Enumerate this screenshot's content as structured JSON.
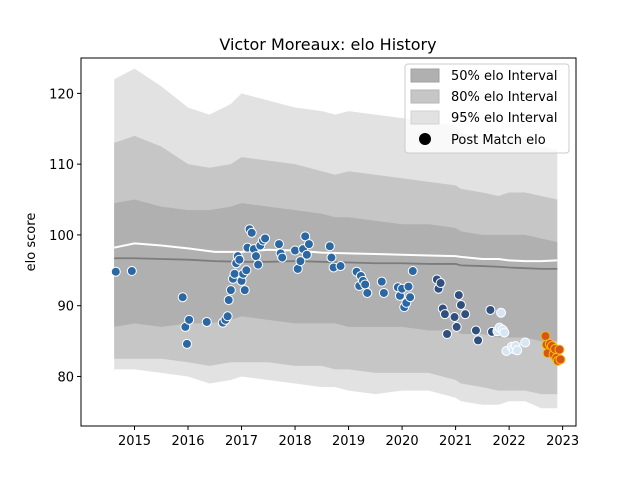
{
  "chart_data": {
    "type": "scatter",
    "title": "Victor Moreaux: elo History",
    "xlabel": "",
    "ylabel": "elo score",
    "xlim": [
      2014.0,
      2023.25
    ],
    "ylim": [
      73,
      125
    ],
    "x_ticks": [
      2015,
      2016,
      2017,
      2018,
      2019,
      2020,
      2021,
      2022,
      2023
    ],
    "y_ticks": [
      80,
      90,
      100,
      110,
      120
    ],
    "grid": false,
    "legend_position": "top-right",
    "legend": [
      {
        "label": "50% elo Interval",
        "color": "#b0b0b0",
        "kind": "patch"
      },
      {
        "label": "80% elo Interval",
        "color": "#c6c6c6",
        "kind": "patch"
      },
      {
        "label": "95% elo Interval",
        "color": "#e2e2e2",
        "kind": "patch"
      },
      {
        "label": "Post Match elo",
        "color": "#000000",
        "kind": "marker"
      }
    ],
    "colors": {
      "band95": "#e2e2e2",
      "band80": "#c6c6c6",
      "band50": "#b0b0b0",
      "median_line": "#7c7c7c",
      "mean_line": "#ffffff",
      "point_early": "#2a67a3",
      "point_mid": "#2f4f7f",
      "point_late": "#d7e6f5",
      "point_recent": "#d9541a",
      "point_edge": "#ffffff",
      "recent_edge": "#f3c300"
    },
    "bands": {
      "x": [
        2014.62,
        2015.0,
        2015.5,
        2016.0,
        2016.4,
        2016.8,
        2017.0,
        2017.5,
        2018.0,
        2018.5,
        2018.75,
        2019.0,
        2019.5,
        2020.0,
        2020.5,
        2021.0,
        2021.1,
        2021.5,
        2021.8,
        2022.0,
        2022.3,
        2022.6,
        2022.9
      ],
      "p95_upper": [
        122.0,
        123.5,
        121.0,
        118.0,
        117.0,
        118.5,
        120.0,
        119.0,
        118.0,
        117.5,
        117.0,
        117.5,
        117.0,
        116.5,
        116.0,
        115.5,
        114.5,
        113.5,
        113.0,
        113.5,
        114.0,
        112.5,
        112.0
      ],
      "p80_upper": [
        113.0,
        114.0,
        112.5,
        110.0,
        109.5,
        110.0,
        111.0,
        110.5,
        110.0,
        109.0,
        108.5,
        109.0,
        108.5,
        108.0,
        107.5,
        107.0,
        106.5,
        106.0,
        105.5,
        106.0,
        106.0,
        105.5,
        105.0
      ],
      "p50_upper": [
        104.5,
        105.0,
        104.0,
        103.5,
        103.5,
        104.0,
        104.5,
        104.0,
        103.5,
        103.0,
        102.5,
        102.5,
        102.0,
        101.5,
        101.5,
        101.0,
        100.5,
        100.0,
        100.0,
        100.0,
        100.0,
        99.5,
        99.0
      ],
      "p50_lower": [
        87.0,
        87.5,
        87.0,
        87.5,
        87.5,
        88.0,
        88.5,
        88.0,
        87.5,
        87.5,
        87.5,
        87.0,
        87.0,
        87.0,
        86.5,
        86.5,
        86.0,
        86.0,
        85.5,
        85.5,
        85.5,
        85.0,
        85.0
      ],
      "p80_lower": [
        82.5,
        82.5,
        82.5,
        82.0,
        81.5,
        82.0,
        82.0,
        82.0,
        81.5,
        81.5,
        81.0,
        81.0,
        80.5,
        80.5,
        80.5,
        79.5,
        79.0,
        78.5,
        78.0,
        78.0,
        78.0,
        77.5,
        77.5
      ],
      "p95_lower": [
        81.0,
        81.0,
        80.5,
        80.0,
        79.0,
        79.5,
        80.0,
        79.5,
        79.0,
        78.5,
        78.5,
        78.0,
        77.5,
        78.0,
        78.0,
        77.0,
        76.5,
        76.0,
        76.0,
        76.5,
        76.5,
        75.5,
        75.5
      ]
    },
    "median_line": {
      "x": [
        2014.62,
        2015.0,
        2015.5,
        2016.0,
        2016.5,
        2017.0,
        2017.5,
        2018.0,
        2018.5,
        2019.0,
        2019.5,
        2020.0,
        2020.5,
        2021.0,
        2021.1,
        2021.5,
        2021.8,
        2022.0,
        2022.3,
        2022.6,
        2022.9
      ],
      "y": [
        96.7,
        96.7,
        96.6,
        96.5,
        96.3,
        96.2,
        96.2,
        96.3,
        96.2,
        96.1,
        96.0,
        96.0,
        95.9,
        95.9,
        95.7,
        95.6,
        95.5,
        95.4,
        95.3,
        95.2,
        95.2
      ]
    },
    "mean_line": {
      "x": [
        2014.62,
        2015.0,
        2015.5,
        2016.0,
        2016.5,
        2017.0,
        2017.5,
        2018.0,
        2018.5,
        2019.0,
        2019.5,
        2020.0,
        2020.5,
        2021.0,
        2021.1,
        2021.5,
        2021.8,
        2022.0,
        2022.3,
        2022.6,
        2022.9
      ],
      "y": [
        98.2,
        98.8,
        98.5,
        98.1,
        97.6,
        97.6,
        97.9,
        97.8,
        97.5,
        97.4,
        97.3,
        97.2,
        97.1,
        97.0,
        96.9,
        96.6,
        96.6,
        96.4,
        96.3,
        96.3,
        96.4
      ]
    },
    "points": [
      [
        2014.65,
        94.8,
        "early"
      ],
      [
        2014.95,
        94.9,
        "early"
      ],
      [
        2015.9,
        91.2,
        "early"
      ],
      [
        2015.95,
        87.0,
        "early"
      ],
      [
        2015.98,
        84.6,
        "early"
      ],
      [
        2016.02,
        88.0,
        "early"
      ],
      [
        2016.35,
        87.7,
        "early"
      ],
      [
        2016.65,
        87.6,
        "early"
      ],
      [
        2016.7,
        88.0,
        "early"
      ],
      [
        2016.74,
        88.5,
        "early"
      ],
      [
        2016.76,
        90.8,
        "early"
      ],
      [
        2016.8,
        92.2,
        "early"
      ],
      [
        2016.84,
        93.8,
        "early"
      ],
      [
        2016.87,
        94.5,
        "early"
      ],
      [
        2016.9,
        96.0,
        "early"
      ],
      [
        2016.93,
        97.0,
        "early"
      ],
      [
        2016.96,
        96.5,
        "early"
      ],
      [
        2017.0,
        93.5,
        "early"
      ],
      [
        2017.03,
        94.5,
        "early"
      ],
      [
        2017.06,
        92.2,
        "early"
      ],
      [
        2017.09,
        95.0,
        "early"
      ],
      [
        2017.11,
        98.2,
        "early"
      ],
      [
        2017.15,
        100.8,
        "early"
      ],
      [
        2017.19,
        100.3,
        "early"
      ],
      [
        2017.23,
        98.0,
        "early"
      ],
      [
        2017.27,
        97.0,
        "early"
      ],
      [
        2017.31,
        95.8,
        "early"
      ],
      [
        2017.35,
        98.5,
        "early"
      ],
      [
        2017.4,
        99.2,
        "early"
      ],
      [
        2017.44,
        99.5,
        "early"
      ],
      [
        2017.7,
        98.7,
        "early"
      ],
      [
        2017.73,
        97.4,
        "early"
      ],
      [
        2017.76,
        96.8,
        "early"
      ],
      [
        2018.0,
        97.8,
        "early"
      ],
      [
        2018.05,
        95.2,
        "early"
      ],
      [
        2018.1,
        96.3,
        "early"
      ],
      [
        2018.15,
        98.0,
        "early"
      ],
      [
        2018.19,
        99.8,
        "early"
      ],
      [
        2018.22,
        97.2,
        "early"
      ],
      [
        2018.26,
        98.7,
        "early"
      ],
      [
        2018.65,
        98.4,
        "early"
      ],
      [
        2018.68,
        96.8,
        "early"
      ],
      [
        2018.72,
        95.4,
        "early"
      ],
      [
        2018.85,
        95.6,
        "early"
      ],
      [
        2019.15,
        94.8,
        "early"
      ],
      [
        2019.2,
        92.8,
        "early"
      ],
      [
        2019.23,
        94.2,
        "early"
      ],
      [
        2019.27,
        93.5,
        "early"
      ],
      [
        2019.31,
        93.0,
        "early"
      ],
      [
        2019.35,
        91.8,
        "early"
      ],
      [
        2019.62,
        93.4,
        "early"
      ],
      [
        2019.66,
        91.8,
        "early"
      ],
      [
        2019.92,
        92.6,
        "early"
      ],
      [
        2019.96,
        91.4,
        "early"
      ],
      [
        2020.0,
        92.4,
        "early"
      ],
      [
        2020.04,
        89.8,
        "early"
      ],
      [
        2020.08,
        90.4,
        "early"
      ],
      [
        2020.12,
        92.7,
        "early"
      ],
      [
        2020.15,
        91.2,
        "early"
      ],
      [
        2020.2,
        94.9,
        "early"
      ],
      [
        2020.65,
        93.7,
        "mid"
      ],
      [
        2020.68,
        92.4,
        "mid"
      ],
      [
        2020.72,
        93.2,
        "mid"
      ],
      [
        2020.76,
        89.6,
        "mid"
      ],
      [
        2020.8,
        88.8,
        "mid"
      ],
      [
        2020.84,
        86.0,
        "mid"
      ],
      [
        2020.98,
        88.4,
        "mid"
      ],
      [
        2021.02,
        87.0,
        "mid"
      ],
      [
        2021.06,
        91.5,
        "mid"
      ],
      [
        2021.1,
        90.1,
        "mid"
      ],
      [
        2021.18,
        88.8,
        "mid"
      ],
      [
        2021.38,
        86.5,
        "mid"
      ],
      [
        2021.42,
        85.1,
        "mid"
      ],
      [
        2021.65,
        89.4,
        "mid"
      ],
      [
        2021.68,
        86.3,
        "mid"
      ],
      [
        2021.78,
        86.4,
        "late"
      ],
      [
        2021.82,
        86.9,
        "late"
      ],
      [
        2021.85,
        89.0,
        "late"
      ],
      [
        2021.88,
        86.6,
        "late"
      ],
      [
        2021.91,
        86.2,
        "late"
      ],
      [
        2021.95,
        83.6,
        "late"
      ],
      [
        2022.05,
        84.2,
        "late"
      ],
      [
        2022.08,
        83.9,
        "late"
      ],
      [
        2022.12,
        84.3,
        "late"
      ],
      [
        2022.15,
        83.7,
        "late"
      ],
      [
        2022.3,
        84.8,
        "late"
      ],
      [
        2022.68,
        85.7,
        "recent"
      ],
      [
        2022.7,
        84.5,
        "recent"
      ],
      [
        2022.72,
        83.3,
        "recent"
      ],
      [
        2022.76,
        84.6,
        "recent"
      ],
      [
        2022.8,
        84.3,
        "recent"
      ],
      [
        2022.83,
        83.1,
        "recent"
      ],
      [
        2022.86,
        83.9,
        "recent"
      ],
      [
        2022.88,
        82.6,
        "recent"
      ],
      [
        2022.91,
        82.2,
        "recent"
      ],
      [
        2022.94,
        83.8,
        "recent"
      ],
      [
        2022.96,
        82.4,
        "recent"
      ]
    ]
  }
}
